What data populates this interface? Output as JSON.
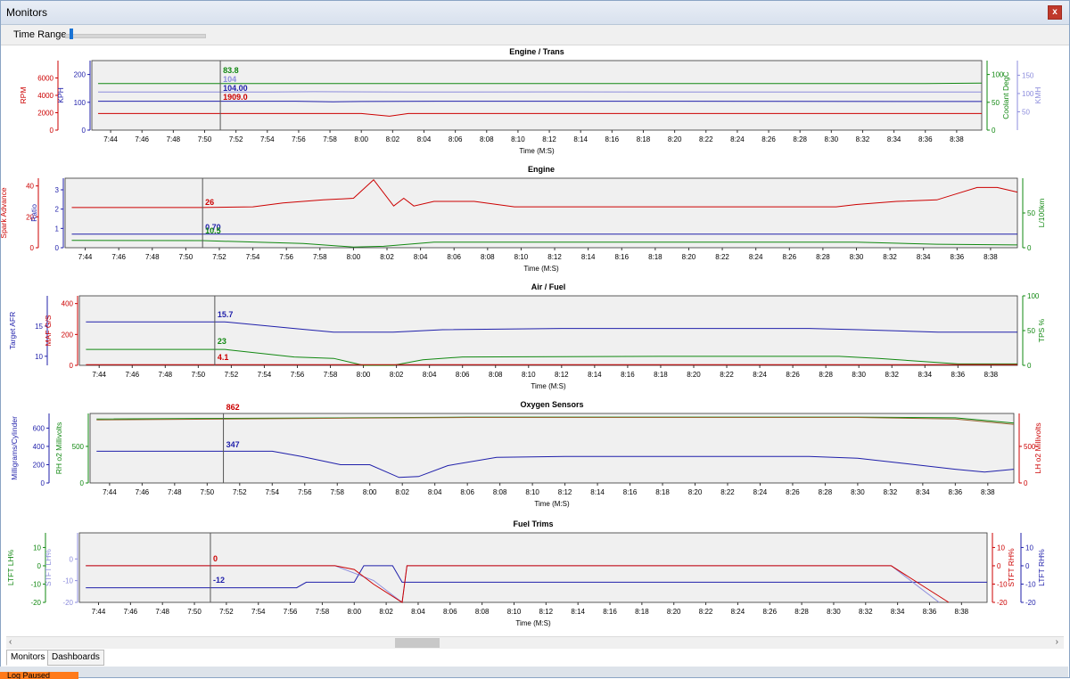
{
  "window": {
    "title": "Monitors",
    "close_symbol": "x"
  },
  "toolbar": {
    "time_range_label": "Time Range",
    "time_range_position": 0.03
  },
  "colors": {
    "red": "#cc0000",
    "blue": "#1f1faa",
    "green": "#118811",
    "light_blue": "#8c8cdc",
    "brown": "#996633",
    "plot_bg": "#f0f0f0"
  },
  "time_ticks": [
    "7:44",
    "7:46",
    "7:48",
    "7:50",
    "7:52",
    "7:54",
    "7:56",
    "7:58",
    "8:00",
    "8:02",
    "8:04",
    "8:06",
    "8:08",
    "8:10",
    "8:12",
    "8:14",
    "8:16",
    "8:18",
    "8:20",
    "8:22",
    "8:24",
    "8:26",
    "8:28",
    "8:30",
    "8:32",
    "8:34",
    "8:36",
    "8:38"
  ],
  "time_axis_label": "Time (M:S)",
  "cursor_time": "7:51",
  "panels": [
    {
      "title": "Engine / Trans",
      "left_axes": [
        {
          "label": "RPM",
          "color": "red",
          "ticks": [
            "0",
            "2000",
            "4000",
            "6000"
          ],
          "min": 0,
          "max": 8000
        },
        {
          "label": "KPH",
          "color": "blue",
          "ticks": [
            "0",
            "100",
            "200"
          ],
          "min": 0,
          "max": 250
        }
      ],
      "right_axes": [
        {
          "label": "Coolant DegC",
          "color": "green",
          "ticks": [
            "0",
            "50",
            "100"
          ],
          "min": 0,
          "max": 125
        },
        {
          "label": "KMH",
          "color": "light_blue",
          "ticks": [
            "50",
            "100",
            "150"
          ],
          "min": 0,
          "max": 190
        }
      ],
      "series": [
        {
          "color": "green",
          "axis": "R0",
          "points": [
            [
              7.72,
              83.8
            ],
            [
              8.6,
              83.8
            ],
            [
              8.66,
              84.5
            ]
          ]
        },
        {
          "color": "light_blue",
          "axis": "R1",
          "points": [
            [
              7.72,
              104
            ],
            [
              7.9,
              104
            ],
            [
              7.95,
              105
            ],
            [
              8.05,
              104
            ],
            [
              8.2,
              104.5
            ],
            [
              8.45,
              104
            ],
            [
              8.66,
              104
            ]
          ]
        },
        {
          "color": "blue",
          "axis": "L1",
          "points": [
            [
              7.72,
              104
            ],
            [
              7.93,
              104
            ],
            [
              7.97,
              102
            ],
            [
              8.0,
              103
            ],
            [
              8.08,
              104
            ],
            [
              8.3,
              104
            ],
            [
              8.66,
              103
            ]
          ]
        },
        {
          "color": "red",
          "axis": "L0",
          "points": [
            [
              7.72,
              1909
            ],
            [
              8.0,
              1909
            ],
            [
              8.03,
              1600
            ],
            [
              8.05,
              1909
            ],
            [
              8.66,
              1909
            ]
          ]
        }
      ],
      "cursor_labels": [
        {
          "text": "83.8",
          "color": "green"
        },
        {
          "text": "104",
          "color": "light_blue"
        },
        {
          "text": "104.00",
          "color": "blue"
        },
        {
          "text": "1909.0",
          "color": "red"
        }
      ]
    },
    {
      "title": "Engine",
      "left_axes": [
        {
          "label": "Spark Advance",
          "color": "red",
          "ticks": [
            "0",
            "20",
            "40"
          ],
          "min": 0,
          "max": 45
        },
        {
          "label": "Ratio",
          "color": "blue",
          "ticks": [
            "0",
            "1",
            "2",
            "3"
          ],
          "min": 0,
          "max": 3.6
        }
      ],
      "right_axes": [
        {
          "label": "L/100km",
          "color": "green",
          "ticks": [
            "0",
            "50"
          ],
          "min": 0,
          "max": 100
        }
      ],
      "series": [
        {
          "color": "red",
          "axis": "L0",
          "points": [
            [
              7.72,
              26
            ],
            [
              7.85,
              26
            ],
            [
              7.9,
              26.5
            ],
            [
              7.93,
              29
            ],
            [
              7.97,
              31
            ],
            [
              8.0,
              32
            ],
            [
              8.02,
              44
            ],
            [
              8.04,
              27
            ],
            [
              8.05,
              32
            ],
            [
              8.06,
              27
            ],
            [
              8.08,
              30
            ],
            [
              8.12,
              30
            ],
            [
              8.16,
              26.5
            ],
            [
              8.3,
              26.5
            ],
            [
              8.48,
              26.5
            ],
            [
              8.5,
              28
            ],
            [
              8.54,
              30
            ],
            [
              8.58,
              31
            ],
            [
              8.6,
              35
            ],
            [
              8.62,
              39
            ],
            [
              8.64,
              39
            ],
            [
              8.66,
              36
            ]
          ]
        },
        {
          "color": "blue",
          "axis": "L1",
          "points": [
            [
              7.72,
              0.7
            ],
            [
              8.66,
              0.7
            ]
          ]
        },
        {
          "color": "green",
          "axis": "R0",
          "points": [
            [
              7.72,
              10.5
            ],
            [
              7.85,
              10.2
            ],
            [
              7.95,
              6
            ],
            [
              8.0,
              1
            ],
            [
              8.03,
              2
            ],
            [
              8.08,
              8
            ],
            [
              8.3,
              8
            ],
            [
              8.5,
              8
            ],
            [
              8.58,
              5
            ],
            [
              8.66,
              4
            ]
          ]
        }
      ],
      "cursor_labels": [
        {
          "text": "26",
          "color": "red"
        },
        {
          "text": "0.70",
          "color": "blue"
        },
        {
          "text": "10.5",
          "color": "green"
        }
      ]
    },
    {
      "title": "Air / Fuel",
      "left_axes": [
        {
          "label": "Target AFR",
          "color": "blue",
          "ticks": [
            "10",
            "15"
          ],
          "min": 8.5,
          "max": 20
        },
        {
          "label": "MAF G/S",
          "color": "red",
          "ticks": [
            "0",
            "200",
            "400"
          ],
          "min": 0,
          "max": 450
        }
      ],
      "right_axes": [
        {
          "label": "TPS %",
          "color": "green",
          "ticks": [
            "0",
            "50",
            "100"
          ],
          "min": 0,
          "max": 100
        }
      ],
      "series": [
        {
          "color": "blue",
          "axis": "L0",
          "points": [
            [
              7.72,
              15.7
            ],
            [
              7.86,
              15.7
            ],
            [
              7.93,
              14.6
            ],
            [
              7.97,
              14
            ],
            [
              8.03,
              14
            ],
            [
              8.08,
              14.4
            ],
            [
              8.2,
              14.6
            ],
            [
              8.45,
              14.6
            ],
            [
              8.5,
              14.4
            ],
            [
              8.58,
              14
            ],
            [
              8.66,
              14
            ]
          ]
        },
        {
          "color": "green",
          "axis": "R0",
          "points": [
            [
              7.72,
              23
            ],
            [
              7.86,
              23
            ],
            [
              7.93,
              12
            ],
            [
              7.97,
              10
            ],
            [
              8.0,
              0
            ],
            [
              8.03,
              0
            ],
            [
              8.06,
              8
            ],
            [
              8.1,
              12
            ],
            [
              8.3,
              13
            ],
            [
              8.48,
              13
            ],
            [
              8.52,
              10
            ],
            [
              8.6,
              2
            ],
            [
              8.66,
              2
            ]
          ]
        },
        {
          "color": "red",
          "axis": "L1",
          "points": [
            [
              7.72,
              4.1
            ],
            [
              8.66,
              4.1
            ]
          ]
        }
      ],
      "cursor_labels": [
        {
          "text": "15.7",
          "color": "blue"
        },
        {
          "text": "23",
          "color": "green"
        },
        {
          "text": "4.1",
          "color": "red"
        }
      ]
    },
    {
      "title": "Oxygen Sensors",
      "left_axes": [
        {
          "label": "Milligrams/Cylinder",
          "color": "blue",
          "ticks": [
            "0",
            "200",
            "400",
            "600"
          ],
          "min": 0,
          "max": 760
        },
        {
          "label": "RH o2 Millivolts",
          "color": "green",
          "ticks": [
            "0",
            "500"
          ],
          "min": 0,
          "max": 950
        }
      ],
      "right_axes": [
        {
          "label": "LH o2 Millivolts",
          "color": "red",
          "ticks": [
            "0",
            "500"
          ],
          "min": 0,
          "max": 950
        }
      ],
      "series": [
        {
          "color": "blue",
          "axis": "L0",
          "points": [
            [
              7.72,
              347
            ],
            [
              7.9,
              347
            ],
            [
              7.93,
              290
            ],
            [
              7.97,
              200
            ],
            [
              8.0,
              200
            ],
            [
              8.03,
              60
            ],
            [
              8.05,
              70
            ],
            [
              8.08,
              190
            ],
            [
              8.13,
              280
            ],
            [
              8.2,
              290
            ],
            [
              8.45,
              290
            ],
            [
              8.5,
              270
            ],
            [
              8.55,
              210
            ],
            [
              8.6,
              150
            ],
            [
              8.63,
              120
            ],
            [
              8.66,
              150
            ]
          ]
        },
        {
          "color": "green",
          "axis": "L1",
          "points": [
            [
              7.72,
              875
            ],
            [
              7.98,
              890
            ],
            [
              8.1,
              900
            ],
            [
              8.5,
              900
            ],
            [
              8.6,
              890
            ],
            [
              8.66,
              820
            ]
          ]
        },
        {
          "color": "brown",
          "axis": "R0",
          "points": [
            [
              7.72,
              862
            ],
            [
              7.98,
              885
            ],
            [
              8.1,
              895
            ],
            [
              8.5,
              895
            ],
            [
              8.6,
              875
            ],
            [
              8.66,
              800
            ]
          ]
        }
      ],
      "cursor_labels": [
        {
          "text": "862",
          "color": "red"
        },
        {
          "text": "347",
          "color": "blue"
        }
      ]
    },
    {
      "title": "Fuel Trims",
      "left_axes": [
        {
          "label": "LTFT LH%",
          "color": "green",
          "ticks": [
            "-20",
            "-10",
            "0",
            "10"
          ],
          "min": -20,
          "max": 18
        },
        {
          "label": "STFT LH%",
          "color": "light_blue",
          "ticks": [
            "-20",
            "-10",
            "0"
          ],
          "min": -20,
          "max": 12
        }
      ],
      "right_axes": [
        {
          "label": "STFT RH%",
          "color": "red",
          "ticks": [
            "-20",
            "-10",
            "0",
            "10"
          ],
          "min": -20,
          "max": 18
        },
        {
          "label": "LTFT RH%",
          "color": "blue",
          "ticks": [
            "-20",
            "-10",
            "0",
            "10"
          ],
          "min": -20,
          "max": 18
        }
      ],
      "series": [
        {
          "color": "blue",
          "axis": "L0",
          "points": [
            [
              7.72,
              -12
            ],
            [
              7.94,
              -12
            ],
            [
              7.95,
              -9
            ],
            [
              8.0,
              -9
            ],
            [
              8.01,
              0
            ],
            [
              8.04,
              0
            ],
            [
              8.05,
              -9
            ],
            [
              8.66,
              -9
            ]
          ]
        },
        {
          "color": "light_blue",
          "axis": "L0",
          "points": [
            [
              7.72,
              0
            ],
            [
              7.98,
              0
            ],
            [
              8.0,
              -4
            ],
            [
              8.02,
              -8
            ],
            [
              8.05,
              -20
            ],
            [
              8.055,
              0
            ],
            [
              8.56,
              0
            ],
            [
              8.59,
              -12
            ],
            [
              8.61,
              -20
            ]
          ]
        },
        {
          "color": "red",
          "axis": "L0",
          "points": [
            [
              7.72,
              0
            ],
            [
              7.98,
              0
            ],
            [
              8.0,
              -2
            ],
            [
              8.02,
              -10
            ],
            [
              8.05,
              -20
            ],
            [
              8.055,
              0
            ],
            [
              8.56,
              0
            ],
            [
              8.59,
              -10
            ],
            [
              8.62,
              -20
            ]
          ]
        }
      ],
      "cursor_labels": [
        {
          "text": "0",
          "color": "red"
        },
        {
          "text": "-12",
          "color": "blue"
        }
      ]
    }
  ],
  "scrollbar": {
    "left_arrow": "‹",
    "right_arrow": "›"
  },
  "tabs": [
    {
      "label": "Monitors",
      "active": true
    },
    {
      "label": "Dashboards",
      "active": false
    }
  ],
  "taskbar": {
    "item": "Log Paused"
  }
}
